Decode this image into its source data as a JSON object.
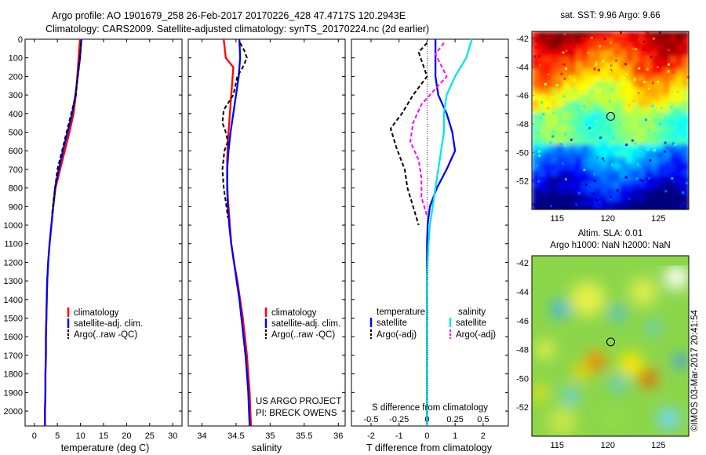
{
  "header": {
    "line1": "Argo profile: AO 1901679_258 26-Feb-2017 20170226_428 47.4717S 120.2943E",
    "line2": "Climatology: CARS2009. Satellite-adjusted climatology: synTS_20170224.nc (2d earlier)"
  },
  "credits": {
    "project": "US ARGO PROJECT",
    "pi": "PI: BRECK OWENS",
    "stamp": "©IMOS 03-Mar-2017 20:41:54"
  },
  "colors": {
    "climatology": "#ff0000",
    "satellite": "#0000ff",
    "argo": "#000000",
    "sal_satellite": "#00e5ee",
    "sal_argo": "#ff00ff"
  },
  "chart_data": [
    {
      "id": "temperature-panel",
      "type": "line",
      "xlabel": "temperature (deg C)",
      "ylabel": "",
      "xlim": [
        -2,
        32
      ],
      "ylim": [
        2080,
        0
      ],
      "y_inverted": true,
      "xticks": [
        0,
        5,
        10,
        15,
        20,
        25,
        30
      ],
      "yticks": [
        0,
        100,
        200,
        300,
        400,
        500,
        600,
        700,
        800,
        900,
        1000,
        1100,
        1200,
        1300,
        1400,
        1500,
        1600,
        1700,
        1800,
        1900,
        2000
      ],
      "legend_position": "lower-center",
      "series": [
        {
          "name": "climatology",
          "color": "#ff0000",
          "dash": "solid",
          "x": [
            9.9,
            9.6,
            9.3,
            9.0,
            8.5,
            7.6,
            6.6,
            5.6,
            4.6,
            4.1,
            3.7,
            3.3,
            3.0,
            2.8,
            2.7,
            2.6,
            2.5,
            2.5,
            2.4,
            2.4,
            2.3,
            2.3
          ],
          "y": [
            0,
            100,
            200,
            300,
            400,
            500,
            600,
            700,
            800,
            900,
            1000,
            1100,
            1200,
            1300,
            1400,
            1500,
            1600,
            1700,
            1800,
            1900,
            2000,
            2080
          ]
        },
        {
          "name": "satellite-adj. clim.",
          "color": "#0000ff",
          "dash": "solid",
          "x": [
            10.2,
            9.9,
            9.4,
            8.9,
            8.2,
            7.2,
            6.2,
            5.3,
            4.5,
            4.1,
            3.7,
            3.3,
            3.0,
            2.8,
            2.7,
            2.6,
            2.5,
            2.5,
            2.4,
            2.4,
            2.3,
            2.3
          ],
          "y": [
            0,
            100,
            200,
            300,
            400,
            500,
            600,
            700,
            800,
            900,
            1000,
            1100,
            1200,
            1300,
            1400,
            1500,
            1600,
            1700,
            1800,
            1900,
            2000,
            2080
          ]
        },
        {
          "name": "Argo(..raw -QC)",
          "color": "#000000",
          "dash": "dashed",
          "x": [
            10.1,
            9.9,
            9.4,
            9.0,
            8.0,
            7.0,
            6.5,
            6.0,
            5.5,
            5.0,
            4.6,
            4.2,
            3.8
          ],
          "y": [
            20,
            100,
            200,
            300,
            400,
            500,
            550,
            600,
            650,
            700,
            780,
            860,
            950
          ]
        }
      ]
    },
    {
      "id": "salinity-panel",
      "type": "line",
      "xlabel": "salinity",
      "ylabel": "",
      "xlim": [
        33.8,
        36.1
      ],
      "ylim": [
        2080,
        0
      ],
      "y_inverted": true,
      "xticks": [
        34,
        34.5,
        35,
        35.5,
        36
      ],
      "legend_position": "lower-center",
      "series": [
        {
          "name": "climatology",
          "color": "#ff0000",
          "dash": "solid",
          "x": [
            34.32,
            34.35,
            34.46,
            34.44,
            34.42,
            34.4,
            34.38,
            34.37,
            34.37,
            34.38,
            34.4,
            34.43,
            34.47,
            34.52,
            34.56,
            34.6,
            34.63,
            34.66,
            34.68,
            34.7,
            34.71,
            34.72
          ],
          "y": [
            0,
            100,
            150,
            250,
            350,
            450,
            550,
            650,
            750,
            850,
            950,
            1100,
            1200,
            1300,
            1400,
            1500,
            1600,
            1700,
            1800,
            1900,
            2000,
            2080
          ]
        },
        {
          "name": "satellite-adj. clim.",
          "color": "#0000ff",
          "dash": "solid",
          "x": [
            34.55,
            34.56,
            34.54,
            34.5,
            34.46,
            34.42,
            34.39,
            34.37,
            34.37,
            34.38,
            34.4,
            34.43,
            34.47,
            34.51,
            34.55,
            34.58,
            34.61,
            34.64,
            34.66,
            34.68,
            34.69,
            34.7
          ],
          "y": [
            0,
            100,
            200,
            300,
            400,
            500,
            600,
            700,
            800,
            900,
            1000,
            1100,
            1200,
            1300,
            1400,
            1500,
            1600,
            1700,
            1800,
            1900,
            2000,
            2080
          ]
        },
        {
          "name": "Argo(..raw -QC)",
          "color": "#000000",
          "dash": "dashed",
          "x": [
            34.56,
            34.62,
            34.66,
            34.6,
            34.52,
            34.46,
            34.32,
            34.3,
            34.35,
            34.38,
            34.33,
            34.3,
            34.32,
            34.36,
            34.38
          ],
          "y": [
            20,
            60,
            100,
            150,
            200,
            300,
            380,
            450,
            500,
            550,
            600,
            700,
            800,
            900,
            960
          ]
        }
      ]
    },
    {
      "id": "difference-panel",
      "type": "line",
      "xlabel": "T difference from climatology",
      "top_label": "S difference from climatology",
      "ylabel": "",
      "xlim": [
        -2.7,
        2.9
      ],
      "ylim": [
        2080,
        0
      ],
      "y_inverted": true,
      "xticks": [
        -2,
        -1,
        0,
        1,
        2
      ],
      "sal_xticks": [
        "-0.5",
        "-0.25",
        "0",
        "0.25",
        "0.5"
      ],
      "sal_xticks_pos": [
        -2,
        -1,
        0,
        1,
        2
      ],
      "legend_position": "lower-center",
      "legend_headers": [
        "temperature",
        "salinity"
      ],
      "series": [
        {
          "name": "satellite",
          "group": "temperature",
          "color": "#0000ff",
          "dash": "solid",
          "x": [
            0.3,
            0.3,
            0.3,
            0.4,
            0.7,
            0.9,
            1.0,
            0.7,
            0.35,
            0.1,
            0.02,
            0,
            0,
            0,
            0,
            0,
            0,
            0,
            0,
            0
          ],
          "y": [
            0,
            100,
            200,
            300,
            400,
            500,
            600,
            700,
            800,
            900,
            1000,
            1100,
            1200,
            1300,
            1400,
            1500,
            1600,
            1700,
            1800,
            2080
          ]
        },
        {
          "name": "Argo(-adj)",
          "group": "temperature",
          "color": "#000000",
          "dash": "dashed",
          "x": [
            0,
            -0.3,
            0,
            -0.5,
            -0.9,
            -1.3,
            -1.1,
            -0.8,
            -0.7,
            -0.5,
            -0.3
          ],
          "y": [
            20,
            70,
            200,
            300,
            400,
            480,
            580,
            700,
            800,
            900,
            1000
          ]
        },
        {
          "name": "satellite",
          "group": "salinity",
          "color": "#00e5ee",
          "dash": "solid",
          "x": [
            1.6,
            1.4,
            1.0,
            0.7,
            0.6,
            0.6,
            0.5,
            0.4,
            0.3,
            0.2,
            0.1,
            0.05,
            0.02,
            0,
            0,
            0,
            0,
            0
          ],
          "y": [
            0,
            100,
            200,
            300,
            400,
            500,
            600,
            700,
            800,
            900,
            1000,
            1100,
            1200,
            1300,
            1400,
            1500,
            1800,
            2080
          ]
        },
        {
          "name": "Argo(-adj)",
          "group": "salinity",
          "color": "#ff00ff",
          "dash": "dashed",
          "x": [
            0.6,
            0.3,
            0.7,
            -0.2,
            -0.5,
            -0.6,
            -0.3,
            -0.2,
            -0.2,
            0
          ],
          "y": [
            20,
            80,
            200,
            350,
            450,
            550,
            650,
            750,
            850,
            950
          ]
        }
      ]
    },
    {
      "id": "sst-map",
      "type": "heatmap",
      "title": "sat. SST: 9.96 Argo: 9.66",
      "xlim": [
        112.5,
        128
      ],
      "ylim": [
        -54,
        -41.5
      ],
      "xticks": [
        115,
        120,
        125
      ],
      "yticks": [
        -42,
        -44,
        -46,
        -48,
        -50,
        -52
      ],
      "marker": {
        "lon": 120.29,
        "lat": -47.47
      }
    },
    {
      "id": "sla-map",
      "type": "heatmap",
      "title": "Altim. SLA: 0.01",
      "subtitle": "Argo h1000: NaN h2000: NaN",
      "xlim": [
        112.5,
        128
      ],
      "ylim": [
        -54,
        -41.5
      ],
      "xticks": [
        115,
        120,
        125
      ],
      "yticks": [
        -42,
        -44,
        -46,
        -48,
        -50,
        -52
      ],
      "marker": {
        "lon": 120.29,
        "lat": -47.47
      }
    }
  ]
}
